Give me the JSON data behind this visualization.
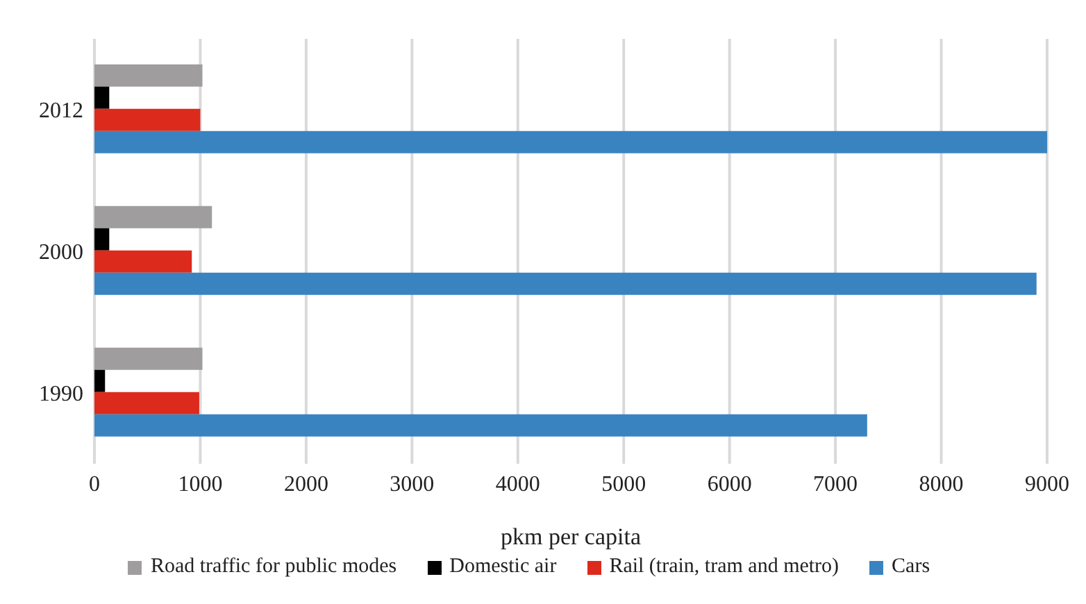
{
  "chart_data": {
    "type": "bar",
    "orientation": "horizontal",
    "xlabel": "pkm per capita",
    "categories": [
      "2012",
      "2000",
      "1990"
    ],
    "series": [
      {
        "name": "Road traffic for public modes",
        "color": "#a09d9e",
        "values": [
          1020,
          1110,
          1020
        ]
      },
      {
        "name": "Domestic air",
        "color": "#000000",
        "values": [
          140,
          140,
          100
        ]
      },
      {
        "name": "Rail (train, tram and metro)",
        "color": "#dc2a1c",
        "values": [
          1000,
          920,
          990
        ]
      },
      {
        "name": "Cars",
        "color": "#3a83c1",
        "values": [
          9000,
          8900,
          7300
        ]
      }
    ],
    "xlim": [
      0,
      9000
    ],
    "xticks": [
      0,
      1000,
      2000,
      3000,
      4000,
      5000,
      6000,
      7000,
      8000,
      9000
    ],
    "grid": "x",
    "legend": "bottom"
  }
}
